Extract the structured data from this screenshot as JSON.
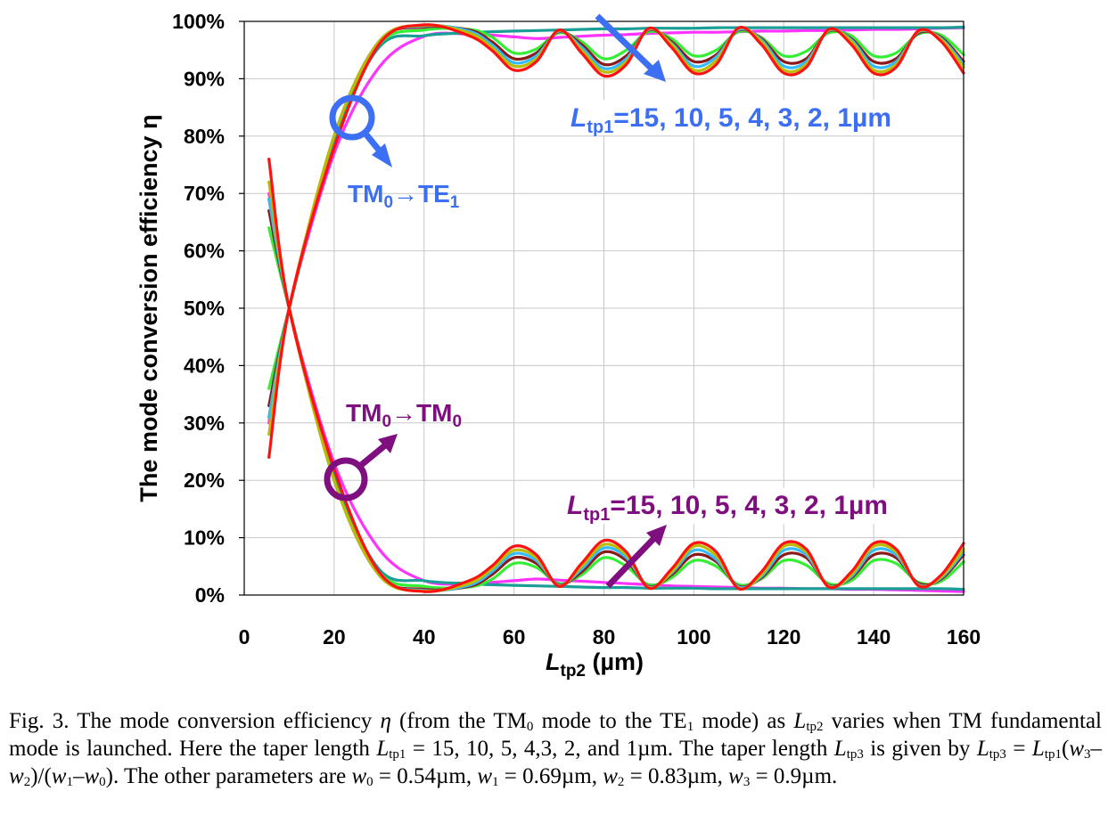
{
  "chart_data": {
    "type": "line",
    "xlabel": {
      "main": "L",
      "sub": "tp2",
      "rest": " (µm)"
    },
    "ylabel": "The mode conversion efficiency η",
    "xlim": [
      0,
      160
    ],
    "ylim": [
      0,
      100
    ],
    "x_ticks": [
      "0",
      "20",
      "40",
      "60",
      "80",
      "100",
      "120",
      "140",
      "160"
    ],
    "y_ticks": [
      "0%",
      "10%",
      "20%",
      "30%",
      "40%",
      "50%",
      "60%",
      "70%",
      "80%",
      "90%",
      "100%"
    ],
    "grid": true,
    "legend": "none",
    "series_x": [
      5.5,
      10,
      20,
      30,
      40,
      50,
      55,
      60,
      65,
      70,
      75,
      80,
      85,
      90,
      95,
      100,
      105,
      110,
      115,
      120,
      125,
      130,
      135,
      140,
      145,
      150,
      155,
      160
    ],
    "series": [
      {
        "color": "#ff33ff",
        "group": "TE1",
        "values": [
          30,
          50,
          77,
          92,
          97.4,
          97.8,
          97.6,
          97.3,
          97.0,
          97.2,
          97.4,
          97.6,
          97.7,
          97.9,
          98.0,
          98.1,
          98.1,
          98.2,
          98.3,
          98.3,
          98.4,
          98.4,
          98.5,
          98.6,
          98.6,
          98.7,
          98.8,
          98.9
        ]
      },
      {
        "color": "#1a9e96",
        "group": "TE1",
        "values": [
          31,
          50,
          79,
          95.5,
          97.5,
          98.0,
          98.2,
          98.3,
          98.4,
          98.5,
          98.6,
          98.7,
          98.7,
          98.8,
          98.8,
          98.8,
          98.9,
          98.9,
          98.9,
          98.9,
          98.9,
          98.9,
          98.9,
          98.9,
          98.9,
          98.9,
          98.9,
          99.0
        ]
      },
      {
        "color": "#33ee33",
        "group": "TE1",
        "values": [
          36,
          50,
          80,
          96.0,
          98.5,
          98.6,
          97.3,
          94.5,
          95.2,
          98.0,
          96.5,
          93.5,
          95.0,
          98.2,
          97.0,
          94.0,
          95.0,
          98.2,
          97.2,
          94.0,
          94.8,
          98.0,
          97.5,
          94.0,
          94.5,
          97.8,
          97.6,
          94.2
        ]
      },
      {
        "color": "#8b1a1a",
        "group": "TE1",
        "values": [
          33,
          50,
          80,
          96.5,
          99.0,
          98.5,
          96.5,
          93.5,
          94.5,
          98.2,
          96.0,
          92.5,
          94.0,
          98.5,
          96.5,
          93.0,
          94.2,
          98.5,
          97.0,
          93.0,
          93.5,
          98.3,
          97.0,
          93.0,
          93.5,
          98.0,
          97.2,
          93.0
        ]
      },
      {
        "color": "#33bbff",
        "group": "TE1",
        "values": [
          31,
          50,
          80,
          96.5,
          99.2,
          98.3,
          96.0,
          92.8,
          94.0,
          98.3,
          95.5,
          91.8,
          93.5,
          98.6,
          96.2,
          92.2,
          93.8,
          98.6,
          96.8,
          92.2,
          93.0,
          98.4,
          96.8,
          92.2,
          93.0,
          98.2,
          97.0,
          92.5
        ]
      },
      {
        "color": "#bbbb00",
        "group": "TE1",
        "values": [
          28,
          50,
          80,
          96.5,
          99.3,
          98.0,
          95.5,
          92.2,
          93.5,
          98.4,
          95.0,
          91.2,
          93.0,
          98.7,
          96.0,
          91.5,
          93.2,
          98.8,
          96.5,
          91.5,
          92.5,
          98.5,
          96.5,
          91.5,
          92.5,
          98.3,
          96.8,
          92.0
        ]
      },
      {
        "color": "#ff1111",
        "group": "TE1",
        "values": [
          24,
          50,
          78,
          96.0,
          99.4,
          97.5,
          95.0,
          91.5,
          93.0,
          98.5,
          94.5,
          90.5,
          92.5,
          98.8,
          95.5,
          91.0,
          92.5,
          98.9,
          96.0,
          91.0,
          92.0,
          98.6,
          96.0,
          91.0,
          92.0,
          98.4,
          96.5,
          91.0
        ]
      },
      {
        "color": "#ff33ff",
        "group": "TM0",
        "values": [
          70,
          50,
          23,
          8,
          2.5,
          2.0,
          2.2,
          2.5,
          2.8,
          2.6,
          2.4,
          2.2,
          2.0,
          1.8,
          1.6,
          1.5,
          1.4,
          1.3,
          1.2,
          1.2,
          1.1,
          1.1,
          1.0,
          1.0,
          0.9,
          0.8,
          0.7,
          0.6
        ]
      },
      {
        "color": "#1a9e96",
        "group": "TM0",
        "values": [
          69,
          50,
          21,
          4.5,
          2.5,
          2.0,
          1.8,
          1.7,
          1.6,
          1.5,
          1.4,
          1.3,
          1.3,
          1.2,
          1.2,
          1.2,
          1.1,
          1.1,
          1.1,
          1.1,
          1.1,
          1.1,
          1.1,
          1.1,
          1.1,
          1.1,
          1.1,
          1.0
        ]
      },
      {
        "color": "#33ee33",
        "group": "TM0",
        "values": [
          64,
          50,
          20,
          4.0,
          1.5,
          1.4,
          2.7,
          5.5,
          4.8,
          2.0,
          3.5,
          6.5,
          5.0,
          1.8,
          3.0,
          6.0,
          5.0,
          1.8,
          2.8,
          6.0,
          5.2,
          2.0,
          2.5,
          6.0,
          5.5,
          2.2,
          2.4,
          5.8
        ]
      },
      {
        "color": "#8b1a1a",
        "group": "TM0",
        "values": [
          67,
          50,
          20,
          3.5,
          1.0,
          1.5,
          3.5,
          6.5,
          5.5,
          1.8,
          4.0,
          7.5,
          6.0,
          1.5,
          3.5,
          7.0,
          5.8,
          1.5,
          3.0,
          7.0,
          6.5,
          1.7,
          3.0,
          7.0,
          6.5,
          2.0,
          2.8,
          7.0
        ]
      },
      {
        "color": "#33bbff",
        "group": "TM0",
        "values": [
          69,
          50,
          20,
          3.5,
          0.8,
          1.7,
          4.0,
          7.2,
          6.0,
          1.7,
          4.5,
          8.2,
          6.5,
          1.4,
          3.8,
          7.8,
          6.2,
          1.4,
          3.2,
          7.8,
          7.0,
          1.6,
          3.2,
          7.8,
          7.0,
          1.8,
          3.0,
          7.5
        ]
      },
      {
        "color": "#bbbb00",
        "group": "TM0",
        "values": [
          72,
          50,
          20,
          3.5,
          0.7,
          2.0,
          4.5,
          7.8,
          6.5,
          1.6,
          5.0,
          8.8,
          7.0,
          1.3,
          4.0,
          8.5,
          6.8,
          1.2,
          3.5,
          8.5,
          7.5,
          1.5,
          3.5,
          8.5,
          7.5,
          1.7,
          3.2,
          8.0
        ]
      },
      {
        "color": "#ff1111",
        "group": "TM0",
        "values": [
          76,
          50,
          22,
          4.0,
          0.6,
          2.5,
          5.0,
          8.5,
          7.0,
          1.5,
          5.5,
          9.5,
          7.5,
          1.2,
          4.5,
          9.0,
          7.5,
          1.1,
          4.0,
          9.0,
          8.0,
          1.4,
          4.0,
          9.0,
          8.0,
          1.6,
          3.5,
          9.0
        ]
      }
    ],
    "annotations": {
      "te_mode": {
        "text1": "TM",
        "sub1": "0",
        "arrow": "→",
        "text2": "TE",
        "sub2": "1",
        "color": "#3d6ff5"
      },
      "tm_mode": {
        "text1": "TM",
        "sub1": "0",
        "arrow": "→",
        "text2": "TM",
        "sub2": "0",
        "color": "#7f0f7f"
      },
      "te_lengths": {
        "main": "L",
        "sub": "tp1",
        "rest": "=15, 10, 5, 4, 3, 2, 1µm",
        "color": "#3d6ff5"
      },
      "tm_lengths": {
        "main": "L",
        "sub": "tp1",
        "rest": "=15, 10, 5, 4, 3, 2, 1µm",
        "color": "#7f0f7f"
      }
    }
  },
  "caption": {
    "p1": "Fig. 3. The mode conversion efficiency ",
    "eta": "η",
    "p2": " (from the TM",
    "sub0": "0",
    "p3": " mode to the TE",
    "sub1": "1",
    "p4": " mode) as ",
    "L": "L",
    "tp2": "tp2",
    "p5": " varies when TM fundamental mode is launched. Here the taper length ",
    "tp1": "tp1",
    "p6": " = 15, 10, 5, 4,3, 2, and 1µm. The taper length ",
    "tp3": "tp3",
    "p7": " is given by ",
    "p8": " = ",
    "p9": "(",
    "w3": "w",
    "s3": "3",
    "minus": "–",
    "w2": "w",
    "s2": "2",
    "p10": ")/(",
    "w1": "w",
    "s1": "1",
    "w0": "w",
    "s0": "0",
    "p11": "). The other parameters are ",
    "v0": " = 0.54µm, ",
    "v1": " = 0.69µm, ",
    "v2": " = 0.83µm, ",
    "v3": " = 0.9µm."
  }
}
